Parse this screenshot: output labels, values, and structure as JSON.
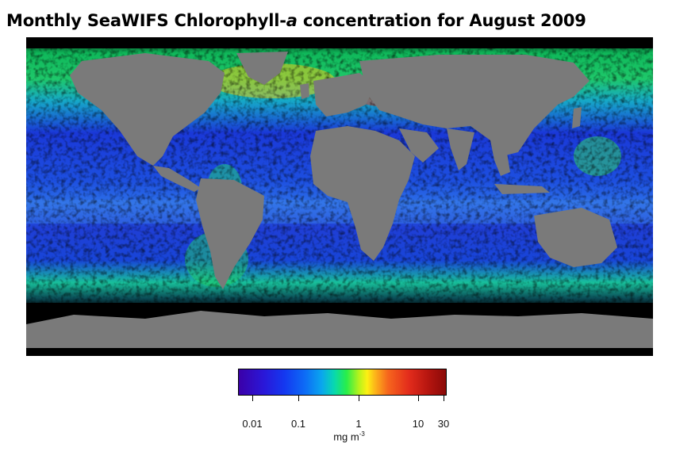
{
  "title": "Monthly SeaWIFS Chlorophyll-a concentration for August 2009",
  "title_parts": {
    "pre": "Monthly SeaWIFS Chlorophyll-",
    "italic": "a",
    "post": " concentration for August 2009"
  },
  "colorbar": {
    "ticks": [
      {
        "label": "0.01",
        "value": 0.01
      },
      {
        "label": "0.1",
        "value": 0.1
      },
      {
        "label": "1",
        "value": 1
      },
      {
        "label": "10",
        "value": 10
      },
      {
        "label": "30",
        "value": 30
      }
    ],
    "unit_base": "mg m",
    "unit_exp": "-3",
    "scale": "log",
    "colors": {
      "low": "#3b00a8",
      "mid": "#28ee4a",
      "high": "#8a0a08"
    }
  },
  "map": {
    "land_color": "#7a7a7a",
    "no_data_color": "#000000",
    "ocean_low_color": "#1a2fd6",
    "ocean_mid_color": "#22d86a",
    "ocean_high_color": "#e8311b"
  }
}
